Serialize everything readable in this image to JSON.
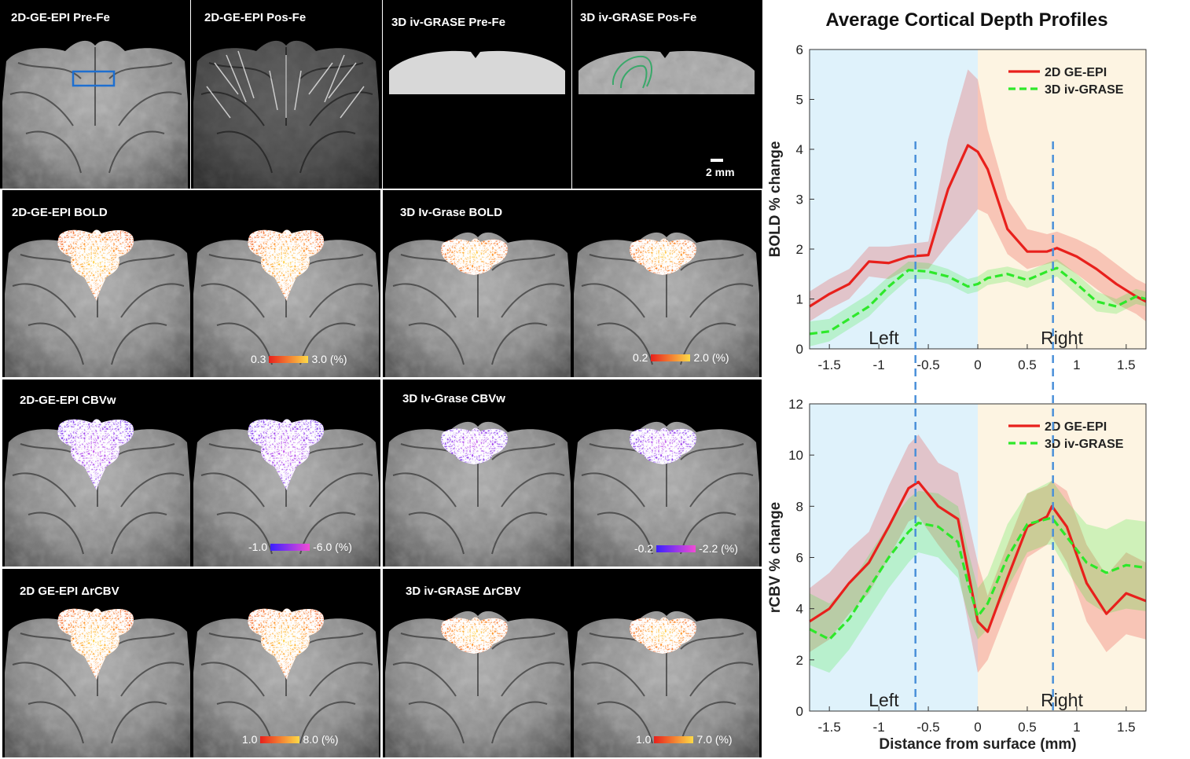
{
  "figure": {
    "chart_title": "Average Cortical Depth Profiles",
    "scale_bar_label": "2 mm"
  },
  "panels": {
    "row1": [
      {
        "label": "2D-GE-EPI Pre-Fe"
      },
      {
        "label": "2D-GE-EPI Pos-Fe"
      },
      {
        "label": "3D iv-GRASE Pre-Fe"
      },
      {
        "label": "3D iv-GRASE Pos-Fe"
      }
    ],
    "bold_epi": {
      "label": "2D-GE-EPI BOLD",
      "cmin": "0.3",
      "cmax": "3.0 (%)"
    },
    "bold_grase": {
      "label": "3D Iv-Grase BOLD",
      "cmin": "0.2",
      "cmax": "2.0 (%)"
    },
    "cbvw_epi": {
      "label": "2D-GE-EPI CBVw",
      "cmin": "-1.0",
      "cmax": "-6.0 (%)"
    },
    "cbvw_grase": {
      "label": "3D Iv-Grase CBVw",
      "cmin": "-0.2",
      "cmax": "-2.2 (%)"
    },
    "rcbv_epi": {
      "label": "2D GE-EPI ΔrCBV",
      "cmin": "1.0",
      "cmax": "8.0 (%)"
    },
    "rcbv_grase": {
      "label": "3D iv-GRASE ΔrCBV",
      "cmin": "1.0",
      "cmax": "7.0 (%)"
    }
  },
  "colors": {
    "epi": "#e8201c",
    "grase": "#2ee82a",
    "left_region": "#dff2fb",
    "right_region": "#fdf4e2",
    "marker": "#4a90d9"
  },
  "chart_data": [
    {
      "type": "line",
      "title": "Average Cortical Depth Profiles",
      "xlabel": "",
      "ylabel": "BOLD % change",
      "xlim": [
        -1.7,
        1.7
      ],
      "ylim": [
        0,
        6
      ],
      "xticks": [
        "-1.5",
        "-1",
        "-0.5",
        "0",
        "0.5",
        "1",
        "1.5"
      ],
      "yticks": [
        "0",
        "1",
        "2",
        "3",
        "4",
        "5",
        "6"
      ],
      "region_labels": [
        "Left",
        "Right"
      ],
      "markers_x": [
        -0.63,
        0.76
      ],
      "series": [
        {
          "name": "2D GE-EPI",
          "x": [
            -1.7,
            -1.5,
            -1.3,
            -1.1,
            -0.9,
            -0.7,
            -0.5,
            -0.3,
            -0.1,
            0.0,
            0.1,
            0.3,
            0.5,
            0.7,
            0.8,
            1.0,
            1.2,
            1.4,
            1.6,
            1.7
          ],
          "y": [
            0.85,
            1.1,
            1.3,
            1.75,
            1.72,
            1.85,
            1.88,
            3.2,
            4.08,
            3.95,
            3.6,
            2.4,
            1.95,
            1.95,
            2.02,
            1.85,
            1.6,
            1.3,
            1.05,
            0.95
          ],
          "lower": [
            0.55,
            0.8,
            1.0,
            1.45,
            1.4,
            1.6,
            1.6,
            2.1,
            2.55,
            2.8,
            2.7,
            1.9,
            1.6,
            1.7,
            1.75,
            1.5,
            1.2,
            0.9,
            0.7,
            0.55
          ],
          "upper": [
            1.15,
            1.4,
            1.6,
            2.05,
            2.05,
            2.1,
            2.15,
            4.2,
            5.6,
            5.4,
            4.4,
            3.0,
            2.4,
            2.3,
            2.35,
            2.2,
            2.0,
            1.7,
            1.4,
            1.3
          ]
        },
        {
          "name": "3D iv-GRASE",
          "x": [
            -1.7,
            -1.5,
            -1.3,
            -1.1,
            -0.9,
            -0.7,
            -0.5,
            -0.3,
            -0.1,
            0.0,
            0.1,
            0.3,
            0.5,
            0.7,
            0.8,
            1.0,
            1.2,
            1.4,
            1.6,
            1.7
          ],
          "y": [
            0.3,
            0.35,
            0.6,
            0.85,
            1.25,
            1.58,
            1.55,
            1.45,
            1.25,
            1.3,
            1.42,
            1.5,
            1.38,
            1.55,
            1.62,
            1.3,
            0.95,
            0.85,
            1.05,
            1.0
          ],
          "lower": [
            0.05,
            0.15,
            0.4,
            0.65,
            1.05,
            1.4,
            1.4,
            1.3,
            1.1,
            1.15,
            1.28,
            1.35,
            1.22,
            1.38,
            1.45,
            1.1,
            0.75,
            0.7,
            0.9,
            0.85
          ],
          "upper": [
            0.55,
            0.6,
            0.85,
            1.1,
            1.45,
            1.75,
            1.72,
            1.6,
            1.4,
            1.45,
            1.58,
            1.65,
            1.55,
            1.72,
            1.8,
            1.5,
            1.15,
            1.0,
            1.2,
            1.15
          ]
        }
      ]
    },
    {
      "type": "line",
      "title": "",
      "xlabel": "Distance from surface (mm)",
      "ylabel": "rCBV % change",
      "xlim": [
        -1.7,
        1.7
      ],
      "ylim": [
        0,
        12
      ],
      "xticks": [
        "-1.5",
        "-1",
        "-0.5",
        "0",
        "0.5",
        "1",
        "1.5"
      ],
      "yticks": [
        "0",
        "2",
        "4",
        "6",
        "8",
        "10",
        "12"
      ],
      "region_labels": [
        "Left",
        "Right"
      ],
      "markers_x": [
        -0.63,
        0.76
      ],
      "series": [
        {
          "name": "2D GE-EPI",
          "x": [
            -1.7,
            -1.5,
            -1.3,
            -1.1,
            -0.9,
            -0.7,
            -0.6,
            -0.4,
            -0.2,
            -0.1,
            0.0,
            0.1,
            0.3,
            0.5,
            0.7,
            0.75,
            0.9,
            1.1,
            1.3,
            1.5,
            1.7
          ],
          "y": [
            3.5,
            4.0,
            5.0,
            5.8,
            7.2,
            8.7,
            8.95,
            8.0,
            7.5,
            5.5,
            3.5,
            3.1,
            5.2,
            7.2,
            7.6,
            8.0,
            7.2,
            5.0,
            3.8,
            4.6,
            4.3
          ],
          "lower": [
            2.3,
            2.8,
            3.8,
            4.6,
            6.0,
            7.4,
            7.6,
            6.5,
            5.5,
            3.5,
            1.5,
            2.0,
            4.0,
            6.0,
            6.5,
            6.8,
            5.8,
            3.5,
            2.3,
            3.0,
            2.8
          ],
          "upper": [
            4.8,
            5.4,
            6.3,
            7.0,
            8.8,
            10.4,
            10.8,
            9.7,
            9.3,
            7.5,
            5.8,
            4.5,
            6.5,
            8.5,
            8.8,
            9.0,
            8.6,
            6.5,
            5.3,
            6.2,
            5.8
          ]
        },
        {
          "name": "3D iv-GRASE",
          "x": [
            -1.7,
            -1.5,
            -1.3,
            -1.1,
            -0.9,
            -0.7,
            -0.6,
            -0.4,
            -0.2,
            -0.1,
            0.0,
            0.1,
            0.3,
            0.5,
            0.7,
            0.75,
            0.9,
            1.1,
            1.3,
            1.5,
            1.7
          ],
          "y": [
            3.2,
            2.8,
            3.6,
            4.8,
            6.0,
            7.0,
            7.35,
            7.2,
            6.6,
            5.0,
            3.7,
            4.2,
            6.0,
            7.3,
            7.5,
            7.55,
            6.8,
            5.8,
            5.4,
            5.7,
            5.6
          ],
          "lower": [
            1.8,
            1.5,
            2.4,
            3.6,
            4.8,
            5.8,
            6.2,
            6.0,
            5.2,
            3.8,
            2.8,
            3.2,
            4.8,
            6.2,
            6.5,
            6.5,
            5.5,
            4.3,
            3.8,
            4.0,
            3.9
          ],
          "upper": [
            4.6,
            4.2,
            4.9,
            6.1,
            7.3,
            8.3,
            8.6,
            8.5,
            8.0,
            6.3,
            4.8,
            5.3,
            7.3,
            8.5,
            8.9,
            9.0,
            8.2,
            7.3,
            7.1,
            7.5,
            7.4
          ]
        }
      ]
    }
  ]
}
